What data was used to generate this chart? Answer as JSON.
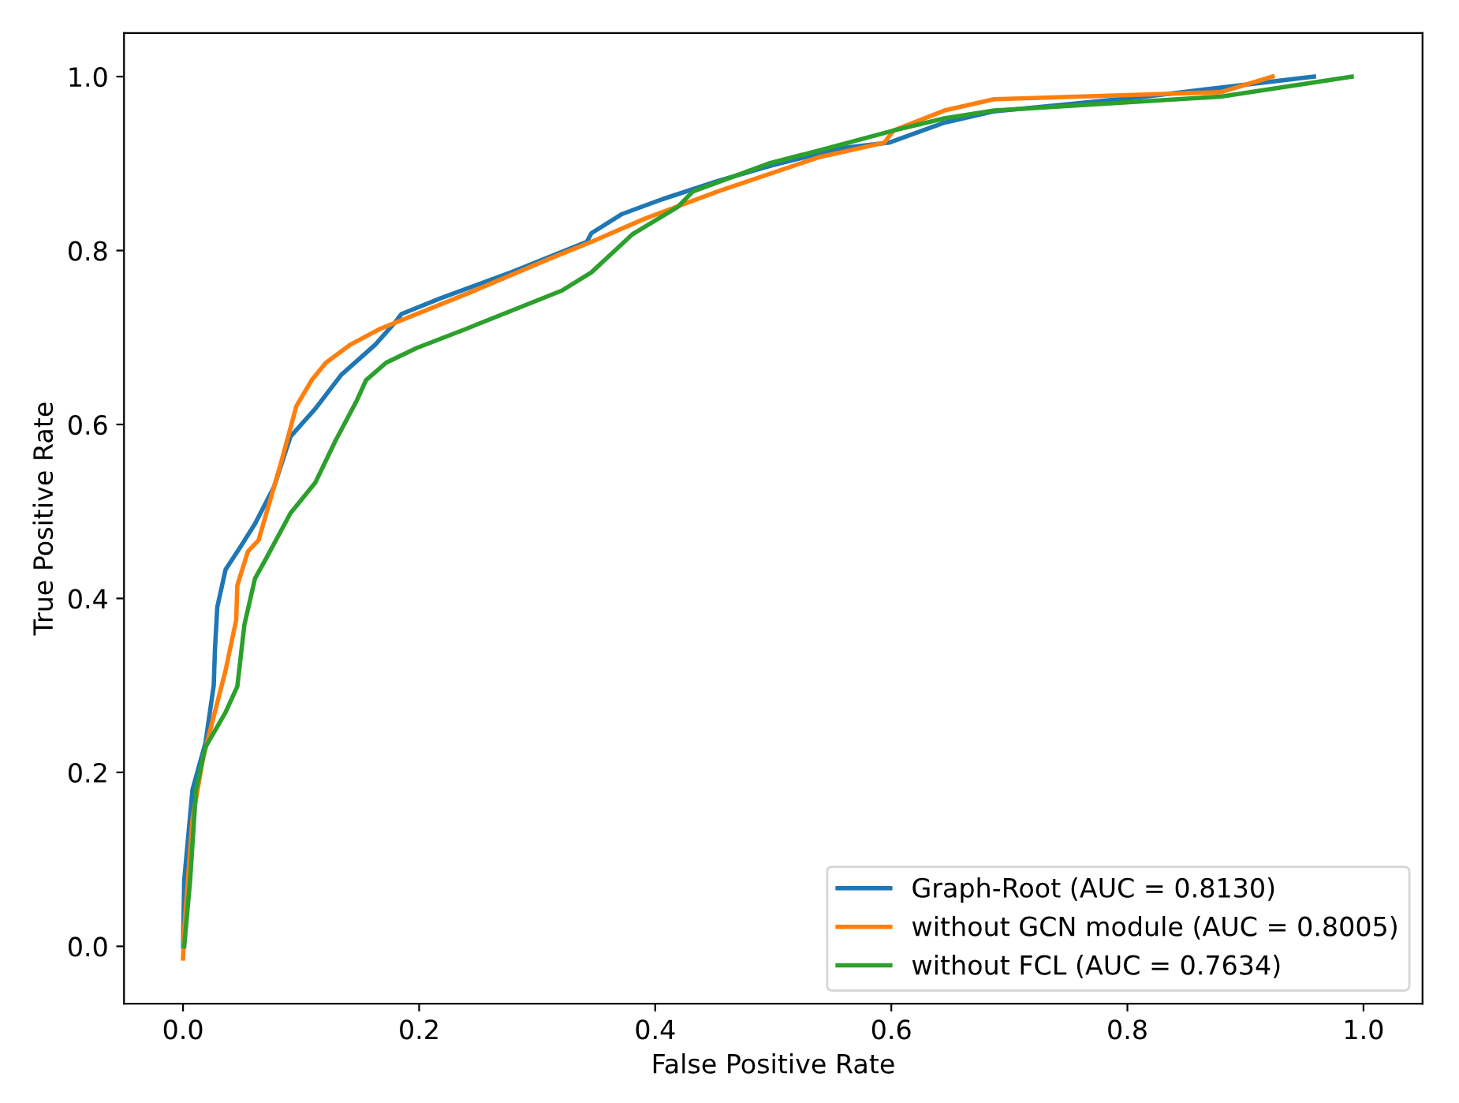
{
  "chart_data": {
    "type": "line",
    "xlabel": "False Positive Rate",
    "ylabel": "True Positive Rate",
    "xlim": [
      -0.05,
      1.05
    ],
    "ylim": [
      -0.066,
      1.05
    ],
    "xticks": [
      {
        "value": 0,
        "label": "0.0"
      },
      0.2,
      0.4,
      0.6,
      0.8,
      {
        "value": 1,
        "label": "1.0"
      }
    ],
    "yticks": [
      {
        "value": 0,
        "label": "0.0"
      },
      0.2,
      0.4,
      0.6,
      0.8,
      {
        "value": 1,
        "label": "1.0"
      }
    ],
    "grid": false,
    "legend": "bottom right",
    "marker": "none",
    "line_style": "solid",
    "series": [
      {
        "name": "Graph-Root (AUC = 0.8130)",
        "color": "#1f77b4",
        "x": [
          0,
          0.001,
          0.008,
          0.019,
          0.026,
          0.027,
          0.029,
          0.036,
          0.049,
          0.061,
          0.077,
          0.091,
          0.112,
          0.134,
          0.163,
          0.18,
          0.185,
          0.218,
          0.278,
          0.342,
          0.346,
          0.372,
          0.406,
          0.453,
          0.499,
          0.559,
          0.598,
          0.645,
          0.687,
          0.815,
          0.958
        ],
        "values": [
          0,
          0.076,
          0.18,
          0.234,
          0.3,
          0.34,
          0.39,
          0.433,
          0.46,
          0.486,
          0.528,
          0.586,
          0.618,
          0.657,
          0.692,
          0.718,
          0.727,
          0.745,
          0.775,
          0.81,
          0.82,
          0.842,
          0.859,
          0.88,
          0.898,
          0.918,
          0.924,
          0.947,
          0.96,
          0.977,
          1.0
        ]
      },
      {
        "name": "without GCN module (AUC = 0.8005)",
        "color": "#ff7f0e",
        "x": [
          0,
          0.001,
          0.008,
          0.017,
          0.036,
          0.045,
          0.046,
          0.055,
          0.064,
          0.083,
          0.096,
          0.109,
          0.121,
          0.142,
          0.167,
          0.24,
          0.313,
          0.346,
          0.39,
          0.453,
          0.538,
          0.594,
          0.602,
          0.645,
          0.687,
          0.879,
          0.923
        ],
        "values": [
          -0.014,
          0.02,
          0.146,
          0.217,
          0.317,
          0.375,
          0.415,
          0.454,
          0.467,
          0.556,
          0.621,
          0.651,
          0.671,
          0.692,
          0.71,
          0.75,
          0.792,
          0.81,
          0.836,
          0.868,
          0.907,
          0.924,
          0.938,
          0.961,
          0.974,
          0.982,
          1.0
        ]
      },
      {
        "name": "without FCL (AUC = 0.7634)",
        "color": "#2ca02c",
        "x": [
          0.001,
          0.006,
          0.011,
          0.019,
          0.036,
          0.046,
          0.052,
          0.061,
          0.07,
          0.091,
          0.112,
          0.129,
          0.147,
          0.155,
          0.172,
          0.198,
          0.24,
          0.249,
          0.321,
          0.346,
          0.381,
          0.419,
          0.432,
          0.496,
          0.547,
          0.602,
          0.645,
          0.687,
          0.879,
          0.99
        ],
        "values": [
          0,
          0.076,
          0.18,
          0.229,
          0.269,
          0.299,
          0.37,
          0.423,
          0.445,
          0.498,
          0.533,
          0.581,
          0.627,
          0.651,
          0.671,
          0.688,
          0.71,
          0.715,
          0.754,
          0.775,
          0.819,
          0.85,
          0.868,
          0.9,
          0.918,
          0.938,
          0.952,
          0.961,
          0.977,
          1.0
        ]
      }
    ]
  }
}
